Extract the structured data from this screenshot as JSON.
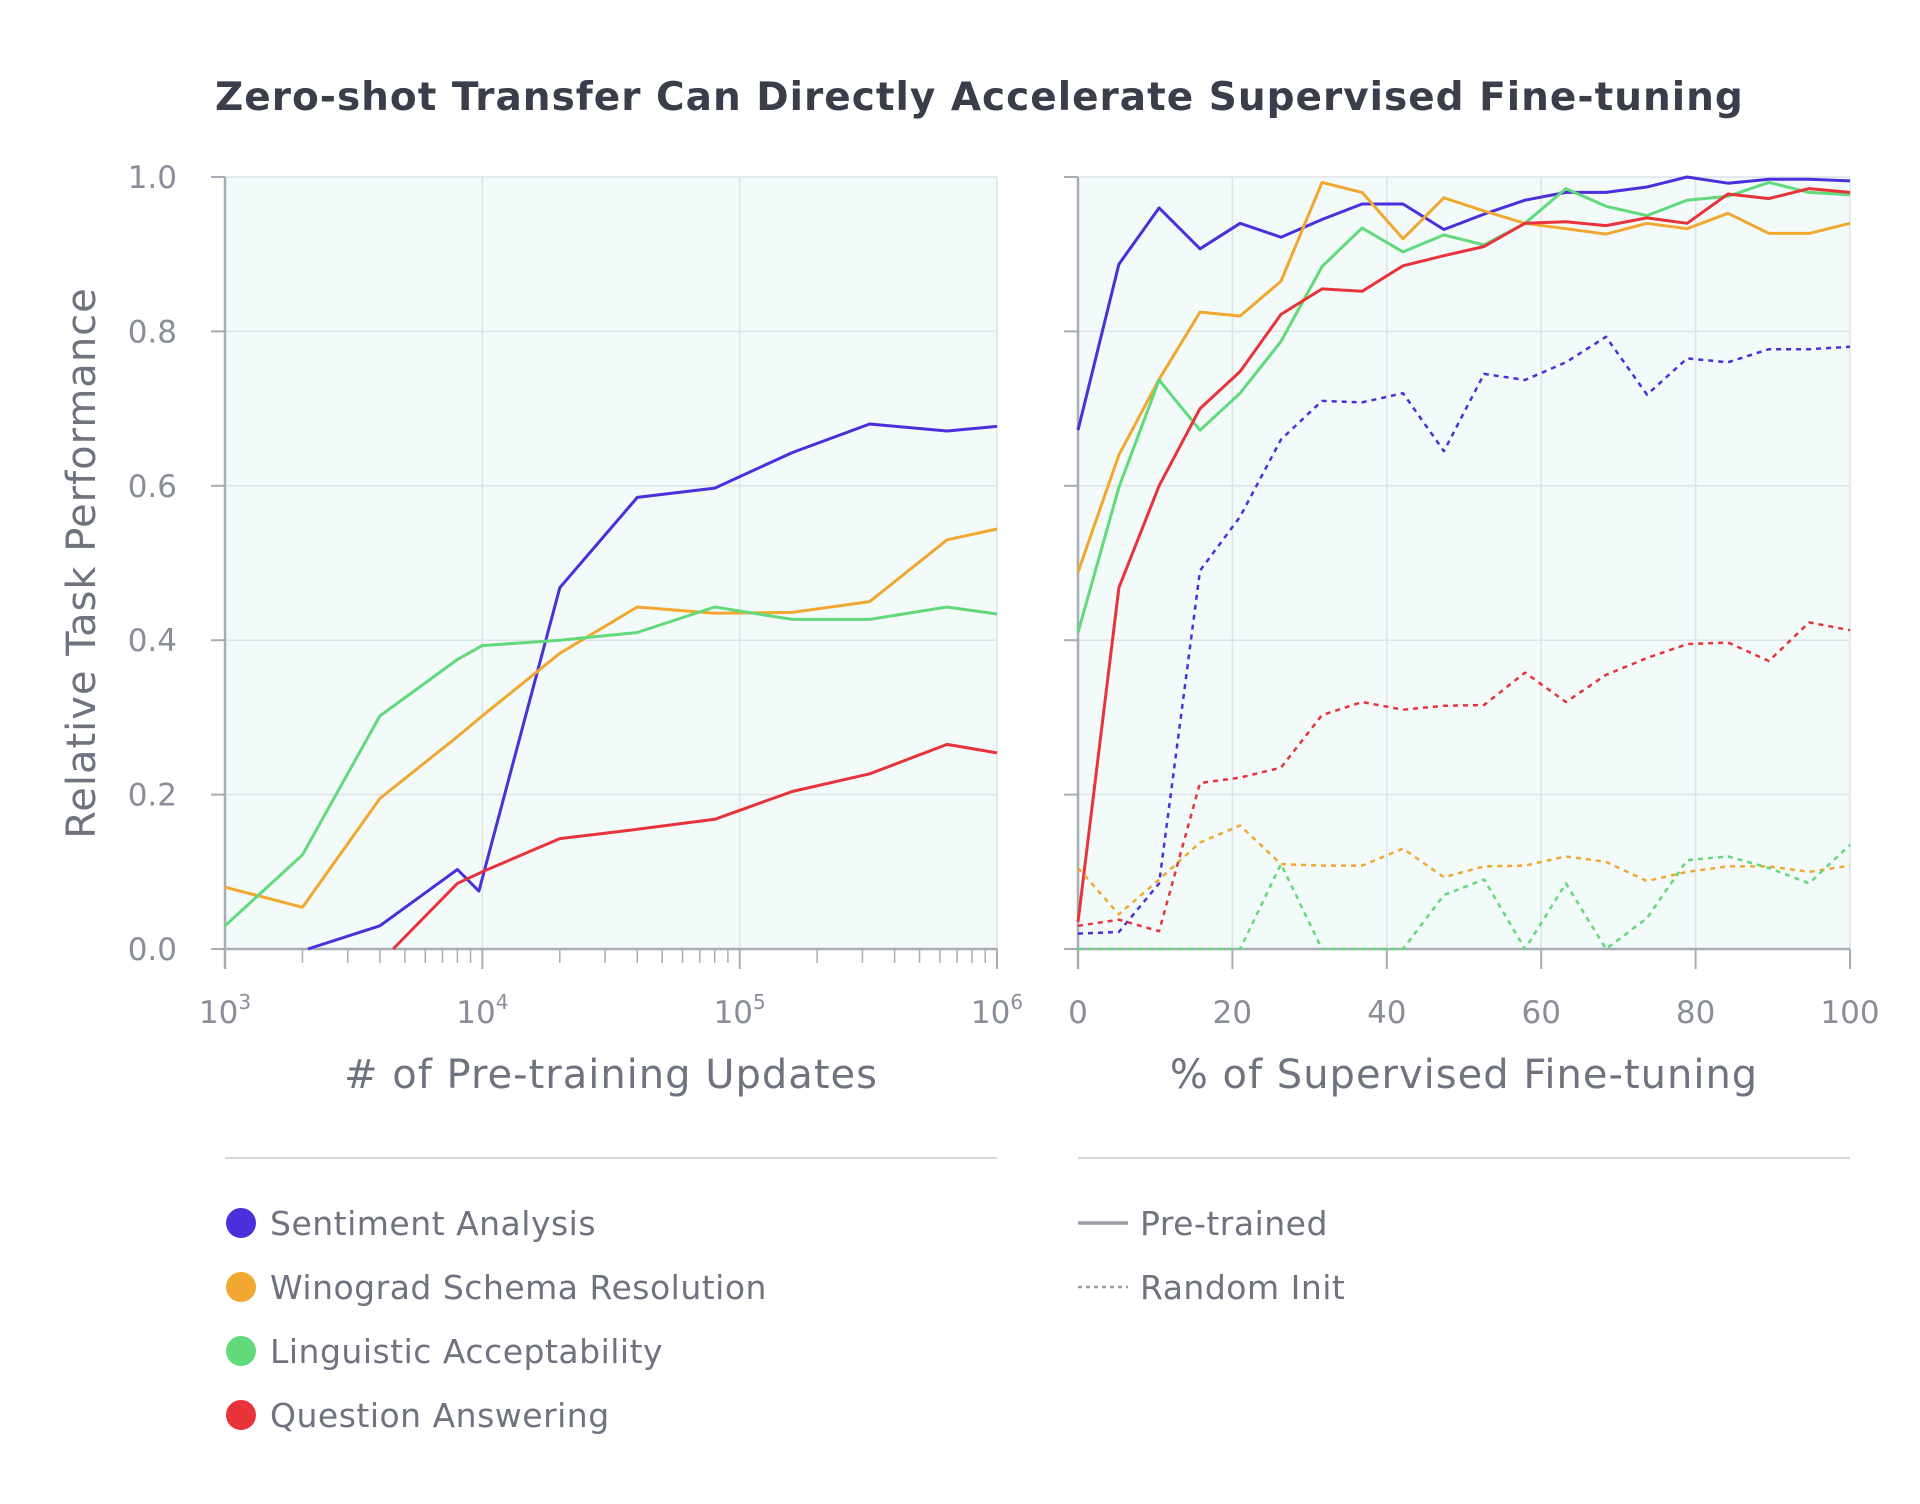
{
  "title": "Zero-shot Transfer Can Directly Accelerate Supervised Fine-tuning",
  "colors": {
    "sentiment": "#4b2fdc",
    "winograd": "#f0a830",
    "linguistic": "#62d97a",
    "qa": "#e8333a",
    "panel_bg": "#f3fafa",
    "grid": "#dde3e6",
    "axis": "#a8adb5"
  },
  "legend": {
    "tasks": [
      {
        "label": "Sentiment Analysis",
        "color": "#4b2fdc"
      },
      {
        "label": "Winograd Schema Resolution",
        "color": "#f0a830"
      },
      {
        "label": "Linguistic Acceptability",
        "color": "#62d97a"
      },
      {
        "label": "Question Answering",
        "color": "#e8333a"
      }
    ],
    "styles": [
      {
        "label": "Pre-trained",
        "dash": "solid"
      },
      {
        "label": "Random Init",
        "dash": "dotted"
      }
    ]
  },
  "chart_data": [
    {
      "type": "line",
      "xlabel": "# of Pre-training Updates",
      "ylabel": "Relative Task Performance",
      "xscale": "log",
      "xlim": [
        1000,
        1000000
      ],
      "ylim": [
        0,
        1
      ],
      "xticks": [
        {
          "value": 1000,
          "base": "10",
          "exp": "3"
        },
        {
          "value": 10000,
          "base": "10",
          "exp": "4"
        },
        {
          "value": 100000,
          "base": "10",
          "exp": "5"
        },
        {
          "value": 1000000,
          "base": "10",
          "exp": "6"
        }
      ],
      "yticks": [
        "0.0",
        "0.2",
        "0.4",
        "0.6",
        "0.8",
        "1.0"
      ],
      "grid": true,
      "series": [
        {
          "name": "Sentiment Analysis",
          "color": "#4b2fdc",
          "style": "solid",
          "x": [
            2100,
            4000,
            8000,
            9700,
            20000,
            40000,
            80000,
            160000,
            320000,
            640000,
            1000000
          ],
          "y": [
            0.0,
            0.03,
            0.103,
            0.075,
            0.468,
            0.585,
            0.597,
            0.643,
            0.68,
            0.671,
            0.677
          ]
        },
        {
          "name": "Winograd Schema Resolution",
          "color": "#f0a830",
          "style": "solid",
          "x": [
            1000,
            2000,
            4000,
            8000,
            10000,
            20000,
            40000,
            80000,
            160000,
            320000,
            640000,
            1000000
          ],
          "y": [
            0.08,
            0.054,
            0.195,
            0.275,
            0.302,
            0.383,
            0.443,
            0.435,
            0.436,
            0.45,
            0.53,
            0.544
          ]
        },
        {
          "name": "Linguistic Acceptability",
          "color": "#62d97a",
          "style": "solid",
          "x": [
            1000,
            2000,
            4000,
            8000,
            10000,
            20000,
            40000,
            80000,
            160000,
            320000,
            640000,
            1000000
          ],
          "y": [
            0.03,
            0.122,
            0.302,
            0.375,
            0.393,
            0.4,
            0.41,
            0.443,
            0.427,
            0.427,
            0.443,
            0.434
          ]
        },
        {
          "name": "Question Answering",
          "color": "#e8333a",
          "style": "solid",
          "x": [
            4500,
            8000,
            10000,
            20000,
            40000,
            80000,
            160000,
            320000,
            640000,
            1000000
          ],
          "y": [
            0.0,
            0.085,
            0.1,
            0.143,
            0.155,
            0.168,
            0.204,
            0.227,
            0.265,
            0.254
          ]
        }
      ]
    },
    {
      "type": "line",
      "xlabel": "% of Supervised Fine-tuning",
      "xlim": [
        0,
        100
      ],
      "ylim": [
        0,
        1
      ],
      "xticks": [
        "0",
        "20",
        "40",
        "60",
        "80",
        "100"
      ],
      "grid": true,
      "series": [
        {
          "name": "Sentiment Analysis",
          "color": "#4b2fdc",
          "style": "solid",
          "x": [
            0,
            5.3,
            10.5,
            15.8,
            21,
            26.3,
            31.6,
            36.8,
            42.1,
            47.4,
            52.6,
            57.9,
            63.2,
            68.4,
            73.7,
            78.9,
            84.2,
            89.5,
            94.7,
            100
          ],
          "y": [
            0.672,
            0.887,
            0.96,
            0.907,
            0.94,
            0.922,
            0.945,
            0.965,
            0.965,
            0.932,
            0.952,
            0.97,
            0.98,
            0.98,
            0.987,
            1.0,
            0.992,
            0.997,
            0.997,
            0.995
          ]
        },
        {
          "name": "Winograd Schema Resolution",
          "color": "#f0a830",
          "style": "solid",
          "x": [
            0,
            5.3,
            10.5,
            15.8,
            21,
            26.3,
            31.6,
            36.8,
            42.1,
            47.4,
            52.6,
            57.9,
            63.2,
            68.4,
            73.7,
            78.9,
            84.2,
            89.5,
            94.7,
            100
          ],
          "y": [
            0.488,
            0.64,
            0.738,
            0.825,
            0.82,
            0.865,
            0.993,
            0.98,
            0.92,
            0.973,
            0.956,
            0.94,
            0.933,
            0.926,
            0.94,
            0.933,
            0.953,
            0.927,
            0.927,
            0.94
          ]
        },
        {
          "name": "Linguistic Acceptability",
          "color": "#62d97a",
          "style": "solid",
          "x": [
            0,
            5.3,
            10.5,
            15.8,
            21,
            26.3,
            31.6,
            36.8,
            42.1,
            47.4,
            52.6,
            57.9,
            63.2,
            68.4,
            73.7,
            78.9,
            84.2,
            89.5,
            94.7,
            100
          ],
          "y": [
            0.41,
            0.598,
            0.737,
            0.672,
            0.72,
            0.787,
            0.884,
            0.934,
            0.903,
            0.925,
            0.912,
            0.94,
            0.985,
            0.962,
            0.95,
            0.97,
            0.975,
            0.993,
            0.98,
            0.977
          ]
        },
        {
          "name": "Question Answering",
          "color": "#e8333a",
          "style": "solid",
          "x": [
            0,
            5.3,
            10.5,
            15.8,
            21,
            26.3,
            31.6,
            36.8,
            42.1,
            47.4,
            52.6,
            57.9,
            63.2,
            68.4,
            73.7,
            78.9,
            84.2,
            89.5,
            94.7,
            100
          ],
          "y": [
            0.035,
            0.468,
            0.6,
            0.7,
            0.748,
            0.822,
            0.855,
            0.852,
            0.885,
            0.898,
            0.91,
            0.94,
            0.942,
            0.937,
            0.947,
            0.94,
            0.978,
            0.972,
            0.985,
            0.98
          ]
        },
        {
          "name": "Sentiment Analysis",
          "color": "#4b2fdc",
          "style": "dotted",
          "x": [
            0,
            5.3,
            10.5,
            15.8,
            21,
            26.3,
            31.6,
            36.8,
            42.1,
            47.4,
            52.6,
            57.9,
            63.2,
            68.4,
            73.7,
            78.9,
            84.2,
            89.5,
            94.7,
            100
          ],
          "y": [
            0.02,
            0.022,
            0.085,
            0.49,
            0.56,
            0.66,
            0.71,
            0.708,
            0.72,
            0.645,
            0.745,
            0.737,
            0.76,
            0.793,
            0.718,
            0.765,
            0.76,
            0.777,
            0.777,
            0.78
          ]
        },
        {
          "name": "Winograd Schema Resolution",
          "color": "#f0a830",
          "style": "dotted",
          "x": [
            0,
            5.3,
            10.5,
            15.8,
            21,
            26.3,
            31.6,
            36.8,
            42.1,
            47.4,
            52.6,
            57.9,
            63.2,
            68.4,
            73.7,
            78.9,
            84.2,
            89.5,
            94.7,
            100
          ],
          "y": [
            0.105,
            0.045,
            0.09,
            0.138,
            0.16,
            0.11,
            0.108,
            0.108,
            0.13,
            0.093,
            0.107,
            0.108,
            0.12,
            0.113,
            0.088,
            0.1,
            0.107,
            0.107,
            0.1,
            0.108
          ]
        },
        {
          "name": "Linguistic Acceptability",
          "color": "#62d97a",
          "style": "dotted",
          "x": [
            0,
            5.3,
            10.5,
            15.8,
            21,
            26.3,
            31.6,
            36.8,
            42.1,
            47.4,
            52.6,
            57.9,
            63.2,
            68.4,
            73.7,
            78.9,
            84.2,
            89.5,
            94.7,
            100
          ],
          "y": [
            0.0,
            0.0,
            0.0,
            0.0,
            0.0,
            0.11,
            0.0,
            0.0,
            0.0,
            0.07,
            0.09,
            0.0,
            0.085,
            0.0,
            0.04,
            0.115,
            0.12,
            0.105,
            0.085,
            0.135
          ]
        },
        {
          "name": "Question Answering",
          "color": "#e8333a",
          "style": "dotted",
          "x": [
            0,
            5.3,
            10.5,
            15.8,
            21,
            26.3,
            31.6,
            36.8,
            42.1,
            47.4,
            52.6,
            57.9,
            63.2,
            68.4,
            73.7,
            78.9,
            84.2,
            89.5,
            94.7,
            100
          ],
          "y": [
            0.03,
            0.038,
            0.023,
            0.215,
            0.222,
            0.235,
            0.303,
            0.32,
            0.31,
            0.315,
            0.316,
            0.358,
            0.32,
            0.355,
            0.377,
            0.395,
            0.397,
            0.373,
            0.423,
            0.413
          ]
        }
      ]
    }
  ]
}
